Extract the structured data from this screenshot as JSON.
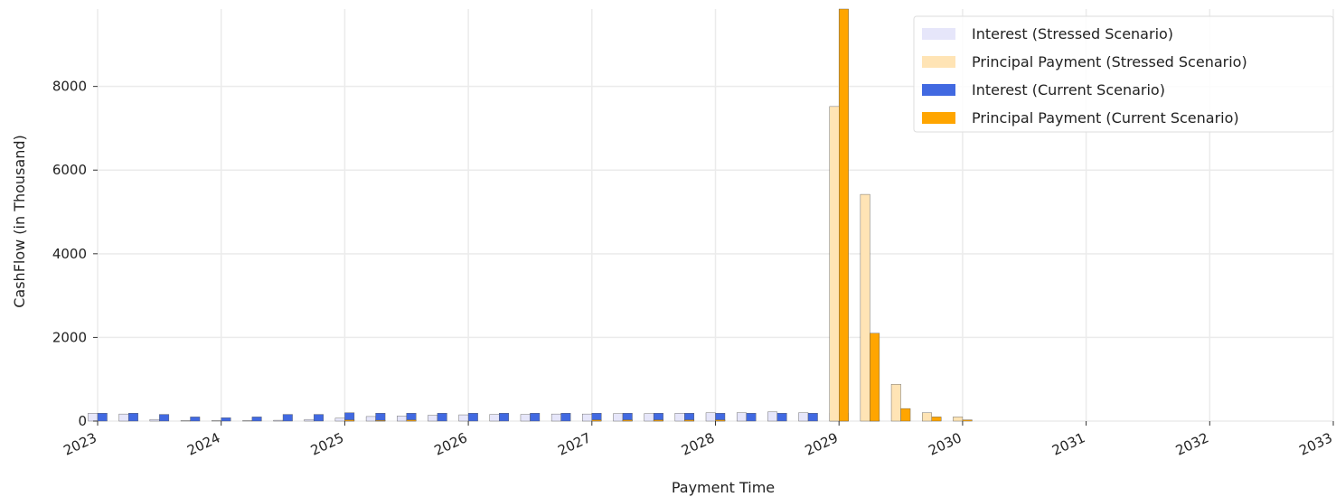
{
  "chart_data": {
    "type": "bar",
    "title": "",
    "xlabel": "Payment Time",
    "ylabel": "CashFlow (in Thousand)",
    "xlim": [
      2023,
      2033
    ],
    "ylim": [
      0,
      9850
    ],
    "x_ticks": [
      "2023",
      "2024",
      "2025",
      "2026",
      "2027",
      "2028",
      "2029",
      "2030",
      "2031",
      "2032",
      "2033"
    ],
    "y_ticks": [
      0,
      2000,
      4000,
      6000,
      8000
    ],
    "y_tick_labels": [
      "0",
      "2000",
      "4000",
      "6000",
      "8000"
    ],
    "grid": true,
    "legend_position": "top-right",
    "x": [
      2023.0,
      2023.25,
      2023.5,
      2023.75,
      2024.0,
      2024.25,
      2024.5,
      2024.75,
      2025.0,
      2025.25,
      2025.5,
      2025.75,
      2026.0,
      2026.25,
      2026.5,
      2026.75,
      2027.0,
      2027.25,
      2027.5,
      2027.75,
      2028.0,
      2028.25,
      2028.5,
      2028.75,
      2029.0,
      2029.25,
      2029.5,
      2029.75,
      2030.0
    ],
    "series": [
      {
        "name": "Interest (Stressed Scenario)",
        "color": "#e6e6fa",
        "values": [
          190,
          170,
          40,
          10,
          10,
          10,
          20,
          40,
          70,
          110,
          120,
          140,
          150,
          160,
          160,
          170,
          170,
          180,
          180,
          190,
          200,
          200,
          220,
          200,
          190,
          0,
          0,
          0,
          0
        ]
      },
      {
        "name": "Principal Payment (Stressed Scenario)",
        "color": "#ffe4b5",
        "values": [
          0,
          0,
          0,
          0,
          0,
          0,
          0,
          0,
          0,
          0,
          0,
          0,
          0,
          0,
          0,
          0,
          0,
          0,
          0,
          0,
          0,
          0,
          0,
          0,
          7520,
          5420,
          880,
          200,
          100
        ]
      },
      {
        "name": "Interest (Current Scenario)",
        "color": "#4169e1",
        "values": [
          190,
          190,
          160,
          100,
          80,
          100,
          160,
          160,
          200,
          190,
          190,
          190,
          190,
          190,
          190,
          190,
          190,
          190,
          190,
          190,
          190,
          190,
          190,
          190,
          190,
          30,
          0,
          0,
          0
        ]
      },
      {
        "name": "Principal Payment (Current Scenario)",
        "color": "#ffa500",
        "values": [
          0,
          0,
          0,
          0,
          0,
          0,
          0,
          0,
          30,
          20,
          30,
          0,
          0,
          0,
          0,
          0,
          30,
          30,
          30,
          30,
          30,
          0,
          0,
          0,
          9850,
          2100,
          300,
          100,
          30
        ]
      }
    ]
  }
}
